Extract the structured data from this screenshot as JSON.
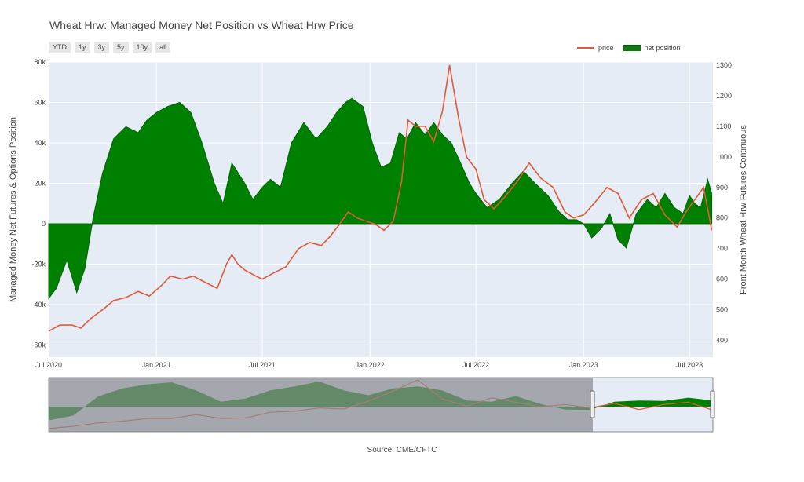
{
  "title": "Wheat Hrw: Managed Money Net Position vs Wheat Hrw Price",
  "range_buttons": [
    "YTD",
    "1y",
    "3y",
    "5y",
    "10y",
    "all"
  ],
  "legend": {
    "price": "price",
    "net_position": "net position"
  },
  "source": "Source: CME/CFTC",
  "colors": {
    "price": "#e05a3a",
    "net_position": "#008000",
    "plot_bg": "#e5ecf6",
    "rangeslider_mask": "#8a8c90"
  },
  "chart_data": {
    "type": "area",
    "xlabel": "",
    "ylabel": "Managed Money Net Futures & Options Position",
    "y2label": "Front Month Wheat Hrw Futures Continuous",
    "xlim": [
      "2020-07-01",
      "2023-08-10"
    ],
    "ylim": [
      -66000,
      80000
    ],
    "y2lim": [
      345,
      1310
    ],
    "x_ticks": [
      "2020-07-01",
      "2021-01-01",
      "2021-07-01",
      "2022-01-01",
      "2022-07-01",
      "2023-01-01",
      "2023-07-01"
    ],
    "x_tick_labels": [
      "Jul 2020",
      "Jan 2021",
      "Jul 2021",
      "Jan 2022",
      "Jul 2022",
      "Jan 2023",
      "Jul 2023"
    ],
    "y_ticks": [
      -60000,
      -40000,
      -20000,
      0,
      20000,
      40000,
      60000,
      80000
    ],
    "y_tick_labels": [
      "-60k",
      "-40k",
      "-20k",
      "0",
      "20k",
      "40k",
      "60k",
      "80k"
    ],
    "y2_ticks": [
      400,
      500,
      600,
      700,
      800,
      900,
      1000,
      1100,
      1200,
      1300
    ],
    "y2_tick_labels": [
      "400",
      "500",
      "600",
      "700",
      "800",
      "900",
      "1000",
      "1100",
      "1200",
      "1300"
    ],
    "grid": true,
    "legend_position": "top-right",
    "series": [
      {
        "name": "net position",
        "axis": "y",
        "x": [
          "2020-07-01",
          "2020-07-14",
          "2020-08-01",
          "2020-08-18",
          "2020-09-01",
          "2020-09-15",
          "2020-10-01",
          "2020-10-20",
          "2020-11-10",
          "2020-12-01",
          "2020-12-15",
          "2021-01-01",
          "2021-01-20",
          "2021-02-10",
          "2021-03-01",
          "2021-03-20",
          "2021-04-10",
          "2021-04-25",
          "2021-05-10",
          "2021-06-01",
          "2021-06-15",
          "2021-07-01",
          "2021-07-15",
          "2021-08-01",
          "2021-08-20",
          "2021-09-10",
          "2021-10-01",
          "2021-10-20",
          "2021-11-05",
          "2021-11-20",
          "2021-12-01",
          "2021-12-20",
          "2022-01-05",
          "2022-01-20",
          "2022-02-05",
          "2022-02-20",
          "2022-03-05",
          "2022-03-20",
          "2022-04-05",
          "2022-04-20",
          "2022-05-05",
          "2022-05-20",
          "2022-06-05",
          "2022-06-20",
          "2022-07-01",
          "2022-07-20",
          "2022-08-10",
          "2022-09-01",
          "2022-09-20",
          "2022-10-10",
          "2022-11-01",
          "2022-11-20",
          "2022-12-05",
          "2022-12-20",
          "2023-01-01",
          "2023-01-15",
          "2023-02-01",
          "2023-02-15",
          "2023-03-01",
          "2023-03-15",
          "2023-04-01",
          "2023-04-20",
          "2023-05-05",
          "2023-05-20",
          "2023-06-05",
          "2023-06-20",
          "2023-07-01",
          "2023-07-10",
          "2023-07-20",
          "2023-08-01",
          "2023-08-08"
        ],
        "values": [
          -37000,
          -32000,
          -18000,
          -34000,
          -22000,
          3000,
          25000,
          42000,
          48000,
          45000,
          51000,
          55000,
          58000,
          60000,
          55000,
          40000,
          20000,
          10000,
          30000,
          20000,
          12000,
          18000,
          22000,
          18000,
          40000,
          50000,
          42000,
          48000,
          55000,
          60000,
          62000,
          58000,
          40000,
          28000,
          30000,
          45000,
          42000,
          50000,
          44000,
          50000,
          44000,
          40000,
          30000,
          20000,
          15000,
          8000,
          12000,
          20000,
          26000,
          20000,
          14000,
          6000,
          2000,
          2000,
          0,
          -7000,
          -2000,
          5000,
          -8000,
          -12000,
          5000,
          12000,
          8000,
          15000,
          8000,
          5000,
          14000,
          10000,
          8000,
          22000,
          15000
        ]
      },
      {
        "name": "price",
        "axis": "y2",
        "x": [
          "2020-07-01",
          "2020-07-20",
          "2020-08-10",
          "2020-08-25",
          "2020-09-10",
          "2020-10-01",
          "2020-10-20",
          "2020-11-10",
          "2020-12-01",
          "2020-12-20",
          "2021-01-10",
          "2021-01-25",
          "2021-02-15",
          "2021-03-05",
          "2021-03-25",
          "2021-04-15",
          "2021-05-01",
          "2021-05-10",
          "2021-05-20",
          "2021-06-01",
          "2021-06-20",
          "2021-07-01",
          "2021-07-20",
          "2021-08-10",
          "2021-09-01",
          "2021-09-20",
          "2021-10-10",
          "2021-10-25",
          "2021-11-10",
          "2021-11-25",
          "2021-12-10",
          "2021-12-25",
          "2022-01-10",
          "2022-01-25",
          "2022-02-10",
          "2022-02-24",
          "2022-03-07",
          "2022-03-20",
          "2022-04-05",
          "2022-04-20",
          "2022-05-05",
          "2022-05-17",
          "2022-06-01",
          "2022-06-15",
          "2022-07-01",
          "2022-07-15",
          "2022-08-01",
          "2022-08-20",
          "2022-09-10",
          "2022-09-30",
          "2022-10-20",
          "2022-11-10",
          "2022-11-30",
          "2022-12-15",
          "2023-01-01",
          "2023-01-20",
          "2023-02-10",
          "2023-03-01",
          "2023-03-20",
          "2023-04-10",
          "2023-04-30",
          "2023-05-20",
          "2023-06-10",
          "2023-06-25",
          "2023-07-10",
          "2023-07-25",
          "2023-08-08"
        ],
        "values": [
          430,
          450,
          450,
          440,
          470,
          500,
          530,
          540,
          560,
          545,
          580,
          610,
          600,
          610,
          590,
          570,
          650,
          680,
          650,
          630,
          610,
          600,
          620,
          640,
          700,
          720,
          710,
          740,
          780,
          820,
          800,
          790,
          780,
          760,
          790,
          920,
          1120,
          1100,
          1100,
          1050,
          1150,
          1300,
          1130,
          1000,
          960,
          860,
          830,
          870,
          920,
          980,
          930,
          900,
          820,
          800,
          810,
          850,
          900,
          880,
          800,
          860,
          880,
          810,
          770,
          820,
          860,
          900,
          760
        ]
      }
    ]
  },
  "rangeslider": {
    "net_position": [
      -34000,
      -22000,
      25000,
      45000,
      55000,
      60000,
      40000,
      12000,
      20000,
      40000,
      50000,
      62000,
      40000,
      28000,
      45000,
      50000,
      40000,
      15000,
      12000,
      26000,
      6000,
      -7000,
      -8000,
      12000,
      15000,
      14000,
      22000,
      15000
    ],
    "price": [
      430,
      470,
      530,
      560,
      610,
      610,
      680,
      610,
      620,
      720,
      740,
      800,
      780,
      920,
      1100,
      1300,
      960,
      830,
      980,
      900,
      820,
      860,
      800,
      880,
      770,
      860,
      900,
      760
    ]
  }
}
